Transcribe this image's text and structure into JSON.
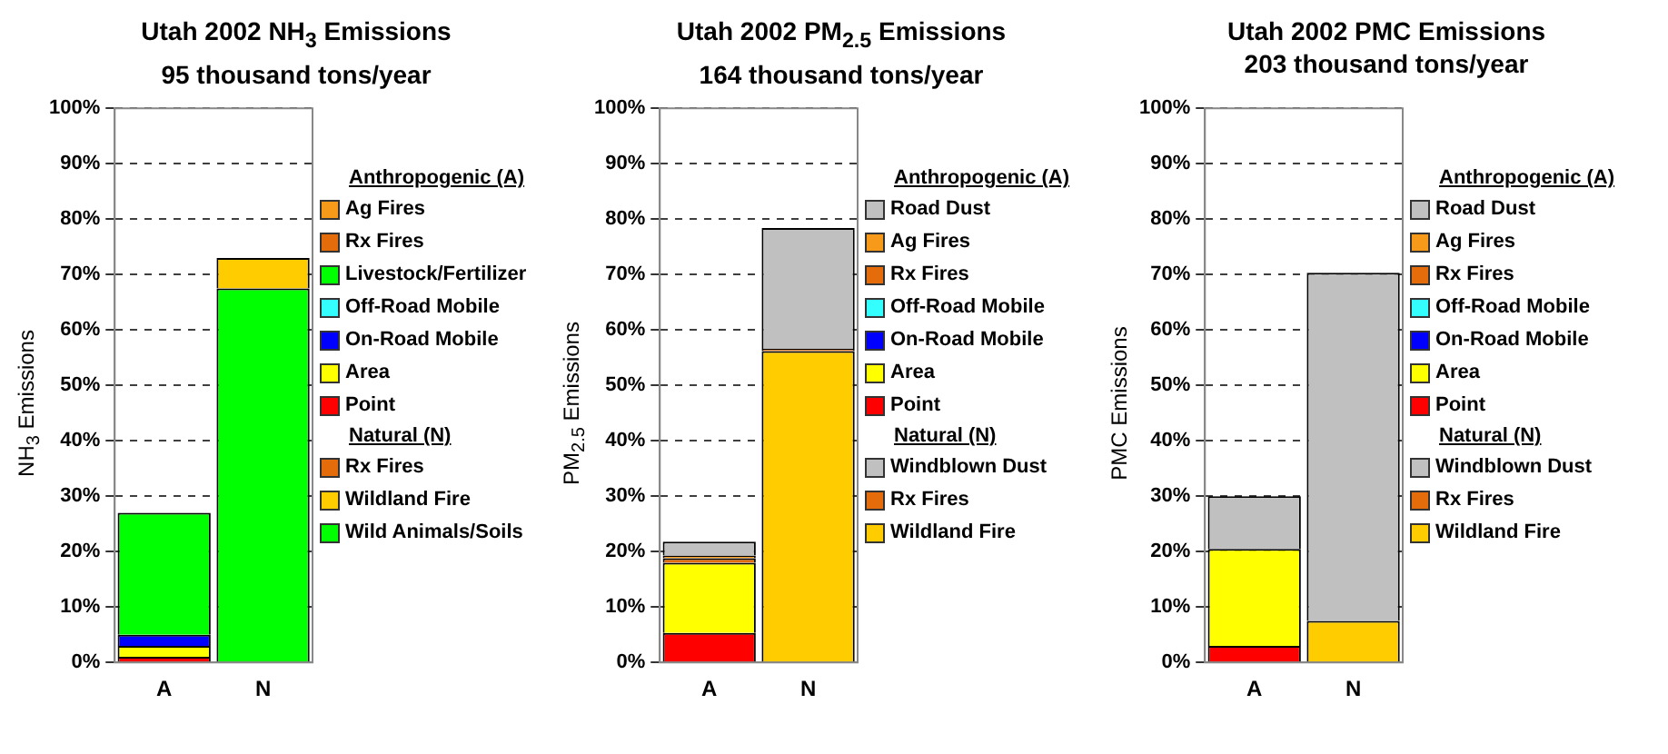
{
  "chart_data": [
    {
      "type": "bar",
      "stacked": true,
      "title": "Utah 2002 NH$_{3}$ Emissions",
      "subtitle": "95 thousand tons/year",
      "ylabel": "NH$_{3}$ Emissions",
      "legend_title": "Anthropogenic (A)",
      "annotations": [
        "Natural (N)"
      ],
      "categories": [
        "A",
        "N"
      ],
      "ylim": [
        0,
        100
      ],
      "yticks": [
        {
          "value": 0,
          "label": "0%"
        },
        {
          "value": 10,
          "label": "10%"
        },
        {
          "value": 20,
          "label": "20%"
        },
        {
          "value": 30,
          "label": "30%"
        },
        {
          "value": 40,
          "label": "40%"
        },
        {
          "value": 50,
          "label": "50%"
        },
        {
          "value": 60,
          "label": "60%"
        },
        {
          "value": 70,
          "label": "70%"
        },
        {
          "value": 80,
          "label": "80%"
        },
        {
          "value": 90,
          "label": "90%"
        },
        {
          "value": 100,
          "label": "100%"
        }
      ],
      "grid": "y",
      "legend": "right",
      "series": [
        {
          "name": "Wild Animals/Soils",
          "color": "#00ff00",
          "values": [
            null,
            67.5
          ]
        },
        {
          "name": "Wildland Fire",
          "color": "#ffcc00",
          "values": [
            null,
            5.5
          ]
        },
        {
          "name": "Rx Fires",
          "color": "#e46c0a",
          "values": [
            null,
            0
          ]
        },
        {
          "name": "Point",
          "color": "#ff0000",
          "values": [
            1,
            null
          ]
        },
        {
          "name": "Area",
          "color": "#ffff00",
          "values": [
            2,
            null
          ]
        },
        {
          "name": "On-Road Mobile",
          "color": "#0000ff",
          "values": [
            2,
            null
          ]
        },
        {
          "name": "Off-Road Mobile",
          "color": "#33ffff",
          "values": [
            0,
            null
          ]
        },
        {
          "name": "Livestock/Fertilizer",
          "color": "#00ff00",
          "values": [
            22,
            null
          ]
        },
        {
          "name": "Rx Fires",
          "color": "#e46c0a",
          "values": [
            0,
            null
          ]
        },
        {
          "name": "Ag Fires",
          "color": "#f79a1a",
          "values": [
            0,
            null
          ]
        }
      ]
    },
    {
      "type": "bar",
      "stacked": true,
      "title": "Utah 2002 PM$_{2.5}$ Emissions",
      "subtitle": "164 thousand tons/year",
      "ylabel": "PM$_{2.5}$ Emissions",
      "legend_title": "Anthropogenic (A)",
      "annotations": [
        "Natural (N)"
      ],
      "categories": [
        "A",
        "N"
      ],
      "ylim": [
        0,
        100
      ],
      "yticks": [
        {
          "value": 0,
          "label": "0%"
        },
        {
          "value": 10,
          "label": "10%"
        },
        {
          "value": 20,
          "label": "20%"
        },
        {
          "value": 30,
          "label": "30%"
        },
        {
          "value": 40,
          "label": "40%"
        },
        {
          "value": 50,
          "label": "50%"
        },
        {
          "value": 60,
          "label": "60%"
        },
        {
          "value": 70,
          "label": "70%"
        },
        {
          "value": 80,
          "label": "80%"
        },
        {
          "value": 90,
          "label": "90%"
        },
        {
          "value": 100,
          "label": "100%"
        }
      ],
      "grid": "y",
      "legend": "right",
      "series": [
        {
          "name": "Wildland Fire",
          "color": "#ffcc00",
          "values": [
            null,
            56.2
          ]
        },
        {
          "name": "Rx Fires",
          "color": "#e46c0a",
          "values": [
            null,
            0.4
          ]
        },
        {
          "name": "Windblown Dust",
          "color": "#c0c0c0",
          "values": [
            null,
            21.8
          ]
        },
        {
          "name": "Point",
          "color": "#ff0000",
          "values": [
            5.3,
            null
          ]
        },
        {
          "name": "Area",
          "color": "#ffff00",
          "values": [
            12.7,
            null
          ]
        },
        {
          "name": "On-Road Mobile",
          "color": "#0000ff",
          "values": [
            0,
            null
          ]
        },
        {
          "name": "Off-Road Mobile",
          "color": "#33ffff",
          "values": [
            0,
            null
          ]
        },
        {
          "name": "Rx Fires",
          "color": "#e46c0a",
          "values": [
            0.8,
            null
          ]
        },
        {
          "name": "Ag Fires",
          "color": "#f79a1a",
          "values": [
            0.5,
            null
          ]
        },
        {
          "name": "Road Dust",
          "color": "#c0c0c0",
          "values": [
            2.5,
            null
          ]
        }
      ]
    },
    {
      "type": "bar",
      "stacked": true,
      "title": "Utah 2002 PMC Emissions",
      "subtitle": "203 thousand tons/year",
      "ylabel": "PMC Emissions",
      "legend_title": "Anthropogenic (A)",
      "annotations": [
        "Natural (N)"
      ],
      "categories": [
        "A",
        "N"
      ],
      "ylim": [
        0,
        100
      ],
      "yticks": [
        {
          "value": 0,
          "label": "0%"
        },
        {
          "value": 10,
          "label": "10%"
        },
        {
          "value": 20,
          "label": "20%"
        },
        {
          "value": 30,
          "label": "30%"
        },
        {
          "value": 40,
          "label": "40%"
        },
        {
          "value": 50,
          "label": "50%"
        },
        {
          "value": 60,
          "label": "60%"
        },
        {
          "value": 70,
          "label": "70%"
        },
        {
          "value": 80,
          "label": "80%"
        },
        {
          "value": 90,
          "label": "90%"
        },
        {
          "value": 100,
          "label": "100%"
        }
      ],
      "grid": "y",
      "legend": "right",
      "series": [
        {
          "name": "Wildland Fire",
          "color": "#ffcc00",
          "values": [
            null,
            7.5
          ]
        },
        {
          "name": "Rx Fires",
          "color": "#e46c0a",
          "values": [
            null,
            0
          ]
        },
        {
          "name": "Windblown Dust",
          "color": "#c0c0c0",
          "values": [
            null,
            62.8
          ]
        },
        {
          "name": "Point",
          "color": "#ff0000",
          "values": [
            3,
            null
          ]
        },
        {
          "name": "Area",
          "color": "#ffff00",
          "values": [
            17.5,
            null
          ]
        },
        {
          "name": "On-Road Mobile",
          "color": "#0000ff",
          "values": [
            0,
            null
          ]
        },
        {
          "name": "Off-Road Mobile",
          "color": "#33ffff",
          "values": [
            0,
            null
          ]
        },
        {
          "name": "Rx Fires",
          "color": "#e46c0a",
          "values": [
            0,
            null
          ]
        },
        {
          "name": "Ag Fires",
          "color": "#f79a1a",
          "values": [
            0,
            null
          ]
        },
        {
          "name": "Road Dust",
          "color": "#c0c0c0",
          "values": [
            9.5,
            null
          ]
        }
      ]
    }
  ]
}
